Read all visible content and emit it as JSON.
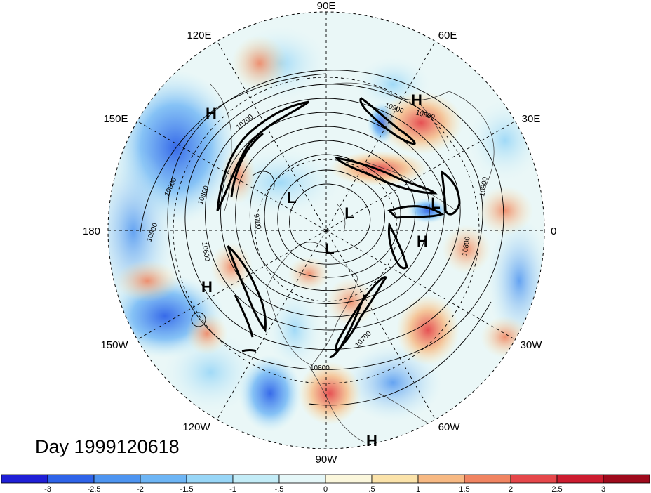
{
  "title": "Day 1999120618",
  "longitude_labels": [
    "90E",
    "60E",
    "30E",
    "0",
    "30W",
    "60W",
    "90W",
    "120W",
    "150W",
    "180",
    "150E",
    "120E"
  ],
  "pressure_systems": [
    {
      "type": "H",
      "sector": "120E-150E"
    },
    {
      "type": "H",
      "sector": "30E-60E"
    },
    {
      "type": "L",
      "sector": "pole-150E"
    },
    {
      "type": "L",
      "sector": "pole"
    },
    {
      "type": "L",
      "sector": "near 0 / 30E"
    },
    {
      "type": "H",
      "sector": "near 0"
    },
    {
      "type": "L",
      "sector": "pole-90W"
    },
    {
      "type": "H",
      "sector": "180-150W"
    },
    {
      "type": "H",
      "sector": "90W-60W"
    }
  ],
  "contour_labels": [
    "10900",
    "10800",
    "10800",
    "10900",
    "10900",
    "10600",
    "9700",
    "10700",
    "10800",
    "10800",
    "10900",
    "10700"
  ],
  "colorbar": {
    "tick_labels": [
      "-3",
      "-2.5",
      "-2",
      "-1.5",
      "-1",
      "-.5",
      "0",
      ".5",
      "1",
      "1.5",
      "2",
      "2.5",
      "3"
    ],
    "colors": [
      "#1f1fd6",
      "#2e63e8",
      "#4d94f0",
      "#6db5f5",
      "#98d6f7",
      "#c3ecf7",
      "#e5f7f8",
      "#fbf7dc",
      "#fbe3aa",
      "#f7b983",
      "#f08461",
      "#e5474a",
      "#cc1c2f",
      "#9e0a1c"
    ]
  }
}
